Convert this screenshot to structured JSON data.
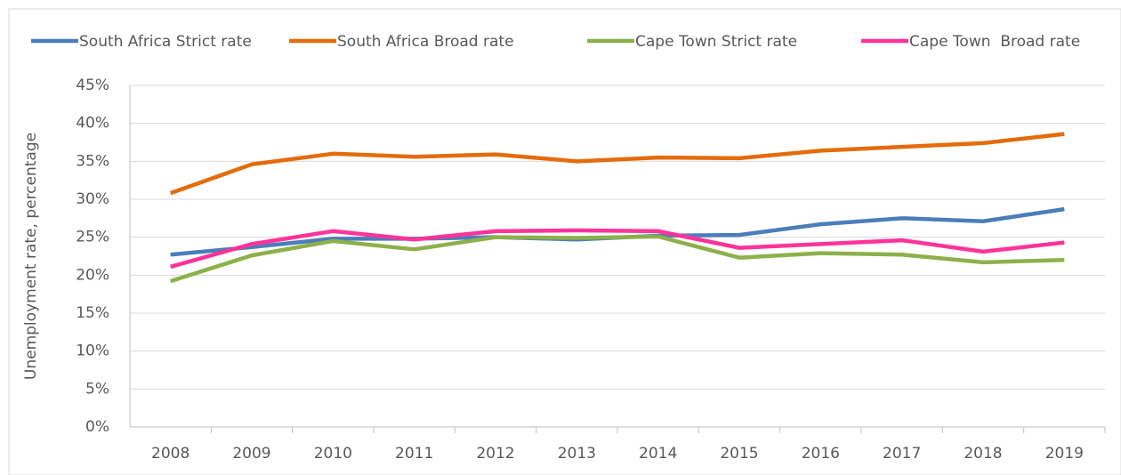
{
  "chart_data": {
    "type": "line",
    "y_axis_label": "Unemployment rate, percentage",
    "categories": [
      "2008",
      "2009",
      "2010",
      "2011",
      "2012",
      "2013",
      "2014",
      "2015",
      "2016",
      "2017",
      "2018",
      "2019"
    ],
    "series": [
      {
        "name": "South Africa Strict rate",
        "color": "#4a7ebb",
        "values": [
          22.7,
          23.7,
          24.8,
          24.8,
          25.0,
          24.7,
          25.2,
          25.3,
          26.7,
          27.5,
          27.1,
          28.7
        ]
      },
      {
        "name": "South Africa Broad rate",
        "color": "#e46c0a",
        "values": [
          30.8,
          34.6,
          36.0,
          35.6,
          35.9,
          35.0,
          35.5,
          35.4,
          36.4,
          36.9,
          37.4,
          38.6
        ]
      },
      {
        "name": "Cape Town Strict rate",
        "color": "#8db04a",
        "values": [
          19.2,
          22.6,
          24.5,
          23.4,
          25.0,
          24.9,
          25.1,
          22.3,
          22.9,
          22.7,
          21.7,
          22.0
        ]
      },
      {
        "name": "Cape Town  Broad rate",
        "color": "#ff3399",
        "values": [
          21.1,
          24.1,
          25.8,
          24.7,
          25.8,
          25.9,
          25.8,
          23.6,
          24.1,
          24.6,
          23.1,
          24.3
        ]
      }
    ],
    "ylim": [
      0,
      45
    ],
    "yticks": [
      {
        "value": 0,
        "label": "0%"
      },
      {
        "value": 5,
        "label": "5%"
      },
      {
        "value": 10,
        "label": "10%"
      },
      {
        "value": 15,
        "label": "15%"
      },
      {
        "value": 20,
        "label": "20%"
      },
      {
        "value": 25,
        "label": "25%"
      },
      {
        "value": 30,
        "label": "30%"
      },
      {
        "value": 35,
        "label": "35%"
      },
      {
        "value": 40,
        "label": "40%"
      },
      {
        "value": 45,
        "label": "45%"
      }
    ],
    "grid": true,
    "legend": "top"
  }
}
